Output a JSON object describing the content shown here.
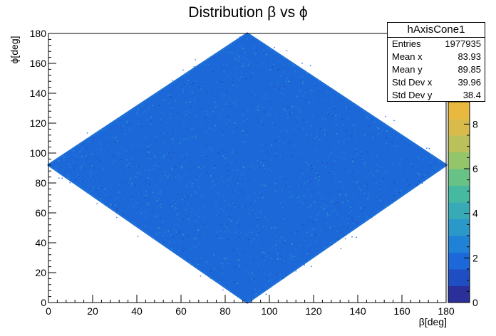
{
  "chart_data": {
    "type": "heatmap",
    "title": "Distribution β vs ϕ",
    "xlabel": "β[deg]",
    "ylabel": "ϕ[deg]",
    "xlim": [
      0,
      180
    ],
    "ylim": [
      0,
      180
    ],
    "x_ticks": [
      "0",
      "20",
      "40",
      "60",
      "80",
      "100",
      "120",
      "140",
      "160",
      "180"
    ],
    "y_ticks": [
      "0",
      "20",
      "40",
      "60",
      "80",
      "100",
      "120",
      "140",
      "160",
      "180"
    ],
    "z_ticks": [
      "0",
      "2",
      "4",
      "6",
      "8"
    ],
    "zlim": [
      0,
      9
    ],
    "shape": "diamond",
    "diamond_vertices_deg": {
      "left": [
        0,
        92
      ],
      "right": [
        180,
        92
      ],
      "top": [
        90,
        180
      ],
      "bottom": [
        90,
        0
      ]
    },
    "palette": [
      "#2a2f9a",
      "#1f4ec2",
      "#1d68d8",
      "#1f82d6",
      "#2a98c8",
      "#37aab6",
      "#46b9a1",
      "#68c287",
      "#94c56b",
      "#bbc15a",
      "#d9bb4c",
      "#e9b83f"
    ],
    "background_color": "#ffffff",
    "stats_box": {
      "name": "hAxisCone1",
      "rows": [
        {
          "label": "Entries",
          "value": "1977935"
        },
        {
          "label": "Mean x",
          "value": "83.93"
        },
        {
          "label": "Mean y",
          "value": "89.85"
        },
        {
          "label": "Std Dev x",
          "value": "39.96"
        },
        {
          "label": "Std Dev y",
          "value": "38.4"
        }
      ]
    }
  }
}
